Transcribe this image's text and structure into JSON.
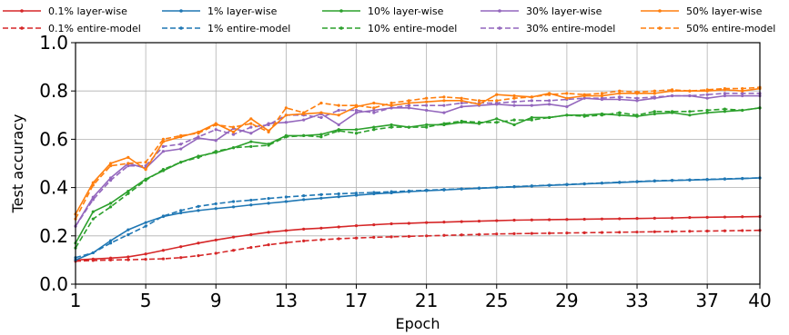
{
  "chart_data": {
    "type": "line",
    "xlabel": "Epoch",
    "ylabel": "Test accuracy",
    "xlim": [
      1,
      40
    ],
    "ylim": [
      0.0,
      1.0
    ],
    "x_ticks": [
      1,
      5,
      9,
      13,
      17,
      21,
      25,
      29,
      33,
      37,
      40
    ],
    "y_ticks": [
      0.0,
      0.2,
      0.4,
      0.6,
      0.8,
      1.0
    ],
    "y_tick_labels": [
      "0.0",
      "0.2",
      "0.4",
      "0.6",
      "0.8",
      "1.0"
    ],
    "grid": true,
    "legend_position": "top",
    "x": [
      1,
      2,
      3,
      4,
      5,
      6,
      7,
      8,
      9,
      10,
      11,
      12,
      13,
      14,
      15,
      16,
      17,
      18,
      19,
      20,
      21,
      22,
      23,
      24,
      25,
      26,
      27,
      28,
      29,
      30,
      31,
      32,
      33,
      34,
      35,
      36,
      37,
      38,
      39,
      40
    ],
    "series": [
      {
        "name": "0.1% layer-wise",
        "color": "#d62728",
        "dash": "solid",
        "values": [
          0.1,
          0.104,
          0.108,
          0.113,
          0.125,
          0.14,
          0.155,
          0.17,
          0.183,
          0.195,
          0.205,
          0.215,
          0.222,
          0.228,
          0.232,
          0.237,
          0.242,
          0.246,
          0.25,
          0.252,
          0.255,
          0.257,
          0.259,
          0.261,
          0.263,
          0.265,
          0.266,
          0.267,
          0.268,
          0.269,
          0.27,
          0.271,
          0.272,
          0.273,
          0.274,
          0.276,
          0.277,
          0.278,
          0.279,
          0.28
        ]
      },
      {
        "name": "0.1% entire-model",
        "color": "#d62728",
        "dash": "dashed",
        "values": [
          0.095,
          0.098,
          0.1,
          0.101,
          0.103,
          0.105,
          0.11,
          0.118,
          0.128,
          0.14,
          0.152,
          0.163,
          0.172,
          0.179,
          0.184,
          0.188,
          0.191,
          0.194,
          0.196,
          0.198,
          0.2,
          0.202,
          0.204,
          0.206,
          0.208,
          0.209,
          0.21,
          0.211,
          0.212,
          0.213,
          0.214,
          0.215,
          0.216,
          0.217,
          0.218,
          0.219,
          0.22,
          0.221,
          0.222,
          0.223
        ]
      },
      {
        "name": "1% layer-wise",
        "color": "#1f77b4",
        "dash": "solid",
        "values": [
          0.1,
          0.13,
          0.18,
          0.225,
          0.255,
          0.28,
          0.295,
          0.305,
          0.313,
          0.32,
          0.328,
          0.335,
          0.342,
          0.35,
          0.356,
          0.362,
          0.368,
          0.374,
          0.378,
          0.383,
          0.387,
          0.39,
          0.394,
          0.397,
          0.4,
          0.403,
          0.406,
          0.409,
          0.412,
          0.415,
          0.418,
          0.421,
          0.424,
          0.427,
          0.429,
          0.431,
          0.433,
          0.435,
          0.437,
          0.44
        ]
      },
      {
        "name": "1% entire-model",
        "color": "#1f77b4",
        "dash": "dashed",
        "values": [
          0.11,
          0.13,
          0.17,
          0.205,
          0.24,
          0.282,
          0.305,
          0.322,
          0.333,
          0.342,
          0.348,
          0.355,
          0.361,
          0.366,
          0.371,
          0.374,
          0.377,
          0.38,
          0.383,
          0.386,
          0.389,
          0.392,
          0.395,
          0.398,
          0.401,
          0.404,
          0.407,
          0.41,
          0.413,
          0.416,
          0.419,
          0.422,
          0.425,
          0.428,
          0.43,
          0.432,
          0.434,
          0.436,
          0.438,
          0.44
        ]
      },
      {
        "name": "10% layer-wise",
        "color": "#2ca02c",
        "dash": "solid",
        "values": [
          0.17,
          0.3,
          0.335,
          0.385,
          0.435,
          0.47,
          0.505,
          0.53,
          0.545,
          0.565,
          0.59,
          0.58,
          0.615,
          0.615,
          0.62,
          0.64,
          0.64,
          0.65,
          0.66,
          0.65,
          0.66,
          0.66,
          0.67,
          0.665,
          0.685,
          0.66,
          0.69,
          0.69,
          0.7,
          0.7,
          0.705,
          0.7,
          0.695,
          0.705,
          0.71,
          0.7,
          0.71,
          0.715,
          0.72,
          0.73
        ]
      },
      {
        "name": "10% entire-model",
        "color": "#2ca02c",
        "dash": "dashed",
        "values": [
          0.15,
          0.27,
          0.32,
          0.375,
          0.43,
          0.475,
          0.505,
          0.525,
          0.55,
          0.565,
          0.57,
          0.575,
          0.61,
          0.615,
          0.61,
          0.635,
          0.625,
          0.64,
          0.65,
          0.65,
          0.65,
          0.665,
          0.675,
          0.67,
          0.67,
          0.68,
          0.68,
          0.69,
          0.7,
          0.695,
          0.7,
          0.71,
          0.7,
          0.715,
          0.715,
          0.715,
          0.72,
          0.725,
          0.72,
          0.73
        ]
      },
      {
        "name": "30% layer-wise",
        "color": "#9467bd",
        "dash": "solid",
        "values": [
          0.24,
          0.36,
          0.44,
          0.5,
          0.48,
          0.55,
          0.56,
          0.605,
          0.595,
          0.645,
          0.625,
          0.665,
          0.67,
          0.68,
          0.705,
          0.66,
          0.71,
          0.72,
          0.73,
          0.73,
          0.72,
          0.71,
          0.735,
          0.74,
          0.745,
          0.74,
          0.74,
          0.745,
          0.735,
          0.77,
          0.765,
          0.765,
          0.76,
          0.77,
          0.78,
          0.78,
          0.77,
          0.78,
          0.78,
          0.78
        ]
      },
      {
        "name": "30% entire-model",
        "color": "#9467bd",
        "dash": "dashed",
        "values": [
          0.24,
          0.35,
          0.43,
          0.49,
          0.49,
          0.57,
          0.58,
          0.61,
          0.64,
          0.62,
          0.65,
          0.66,
          0.7,
          0.7,
          0.69,
          0.72,
          0.72,
          0.71,
          0.73,
          0.74,
          0.74,
          0.74,
          0.75,
          0.75,
          0.75,
          0.755,
          0.76,
          0.76,
          0.765,
          0.77,
          0.77,
          0.775,
          0.77,
          0.775,
          0.78,
          0.78,
          0.785,
          0.79,
          0.79,
          0.79
        ]
      },
      {
        "name": "50% layer-wise",
        "color": "#ff7f0e",
        "dash": "solid",
        "values": [
          0.29,
          0.42,
          0.5,
          0.525,
          0.475,
          0.59,
          0.61,
          0.63,
          0.665,
          0.63,
          0.685,
          0.635,
          0.7,
          0.705,
          0.71,
          0.7,
          0.735,
          0.75,
          0.74,
          0.75,
          0.755,
          0.76,
          0.76,
          0.745,
          0.785,
          0.78,
          0.775,
          0.79,
          0.77,
          0.78,
          0.78,
          0.79,
          0.79,
          0.79,
          0.8,
          0.8,
          0.8,
          0.805,
          0.8,
          0.81
        ]
      },
      {
        "name": "50% entire-model",
        "color": "#ff7f0e",
        "dash": "dashed",
        "values": [
          0.27,
          0.41,
          0.49,
          0.5,
          0.505,
          0.6,
          0.615,
          0.625,
          0.66,
          0.65,
          0.665,
          0.63,
          0.73,
          0.71,
          0.75,
          0.74,
          0.74,
          0.73,
          0.75,
          0.76,
          0.77,
          0.775,
          0.77,
          0.76,
          0.76,
          0.77,
          0.775,
          0.785,
          0.79,
          0.785,
          0.79,
          0.8,
          0.795,
          0.8,
          0.805,
          0.8,
          0.805,
          0.81,
          0.81,
          0.815
        ]
      }
    ]
  }
}
